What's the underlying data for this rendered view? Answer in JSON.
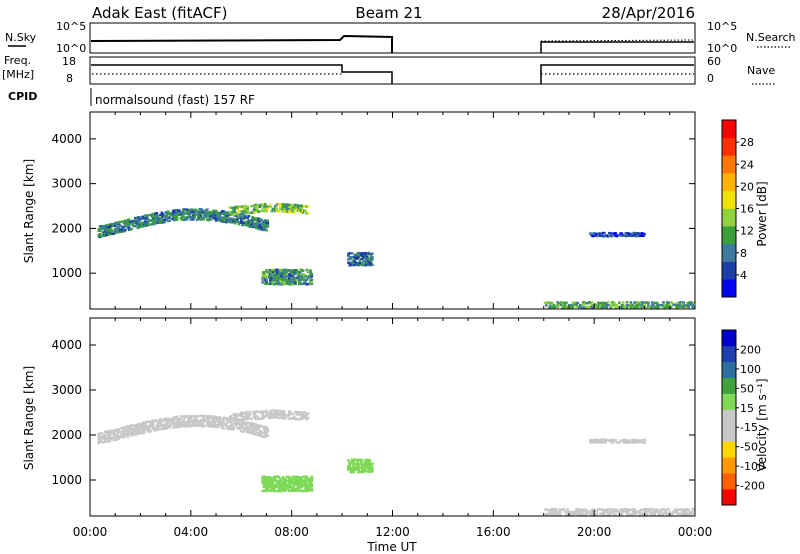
{
  "header": {
    "radar": "Adak East (fitACF)",
    "beam": "Beam 21",
    "date": "28/Apr/2016"
  },
  "panels": {
    "nsky_label": "N.Sky",
    "nsky_ticks": [
      "10^5",
      "10^0"
    ],
    "nsearch_label": "N.Search",
    "nsearch_ticks": [
      "10^5",
      "10^0"
    ],
    "freq_label": "Freq.",
    "freq_unit": "[MHz]",
    "freq_ticks": [
      "18",
      "8"
    ],
    "nave_label": "Nave",
    "nave_ticks": [
      "60",
      "0"
    ],
    "cpid_label": "CPID",
    "cpid_text": "normalsound (fast) 157 RF"
  },
  "colors": {
    "power": [
      "#0000ff",
      "#1b3fa6",
      "#3d7a9e",
      "#3aa03a",
      "#8fd13f",
      "#f2e200",
      "#ffb400",
      "#ff7800",
      "#ff3000",
      "#ff0000"
    ],
    "velocity": [
      "#ff0000",
      "#ff6000",
      "#ff9a00",
      "#ffd700",
      "#c8c8c8",
      "#c8c8c8",
      "#7ed957",
      "#3ea33e",
      "#2d6fa0",
      "#1f3fb0",
      "#0000cc"
    ]
  },
  "chart_data": [
    {
      "type": "heatmap",
      "name": "power",
      "xlabel": "",
      "ylabel": "Slant Range [km]",
      "y_ticks": [
        "1000",
        "2000",
        "3000",
        "4000"
      ],
      "ylim": [
        200,
        4600
      ],
      "x_ticks": [
        "00:00",
        "04:00",
        "08:00",
        "12:00",
        "16:00",
        "20:00",
        "00:00"
      ],
      "xlim_hours": [
        0,
        24
      ],
      "colorbar_label": "Power [dB]",
      "colorbar_ticks": [
        "28",
        "24",
        "20",
        "16",
        "12",
        "8",
        "4"
      ],
      "colorbar_range": [
        0,
        30
      ],
      "regions": [
        {
          "t0": 0.3,
          "t1": 7.0,
          "r_mid": 2100,
          "r_amp": 250,
          "thick": 260,
          "v": 8
        },
        {
          "t0": 5.5,
          "t1": 8.6,
          "r_mid": 2450,
          "r_amp": 50,
          "thick": 200,
          "v": 12
        },
        {
          "t0": 6.8,
          "t1": 8.8,
          "r_mid": 950,
          "r_amp": 0,
          "thick": 350,
          "v": 9
        },
        {
          "t0": 10.2,
          "t1": 11.2,
          "r_mid": 1350,
          "r_amp": 0,
          "thick": 300,
          "v": 7
        },
        {
          "t0": 19.8,
          "t1": 22.0,
          "r_mid": 1900,
          "r_amp": 0,
          "thick": 100,
          "v": 5
        },
        {
          "t0": 18.0,
          "t1": 24.0,
          "r_mid": 330,
          "r_amp": 0,
          "thick": 150,
          "v": 10
        }
      ]
    },
    {
      "type": "heatmap",
      "name": "velocity",
      "xlabel": "Time UT",
      "ylabel": "Slant Range [km]",
      "y_ticks": [
        "1000",
        "2000",
        "3000",
        "4000"
      ],
      "ylim": [
        200,
        4600
      ],
      "x_ticks": [
        "00:00",
        "04:00",
        "08:00",
        "12:00",
        "16:00",
        "20:00",
        "00:00"
      ],
      "xlim_hours": [
        0,
        24
      ],
      "colorbar_label": "Velocity [m s⁻¹]",
      "colorbar_ticks": [
        "200",
        "100",
        "50",
        "15",
        "-15",
        "-50",
        "-100",
        "-200"
      ],
      "colorbar_range": [
        -250,
        250
      ],
      "regions": [
        {
          "t0": 0.3,
          "t1": 7.0,
          "r_mid": 2100,
          "r_amp": 250,
          "thick": 260,
          "v": -5
        },
        {
          "t0": 5.5,
          "t1": 8.6,
          "r_mid": 2450,
          "r_amp": 50,
          "thick": 200,
          "v": -20
        },
        {
          "t0": 6.8,
          "t1": 8.8,
          "r_mid": 950,
          "r_amp": 0,
          "thick": 350,
          "v": 40
        },
        {
          "t0": 10.2,
          "t1": 11.2,
          "r_mid": 1350,
          "r_amp": 0,
          "thick": 300,
          "v": 45
        },
        {
          "t0": 19.8,
          "t1": 22.0,
          "r_mid": 1900,
          "r_amp": 0,
          "thick": 100,
          "v": 0
        },
        {
          "t0": 18.0,
          "t1": 24.0,
          "r_mid": 330,
          "r_amp": 0,
          "thick": 150,
          "v": 10
        }
      ]
    }
  ]
}
